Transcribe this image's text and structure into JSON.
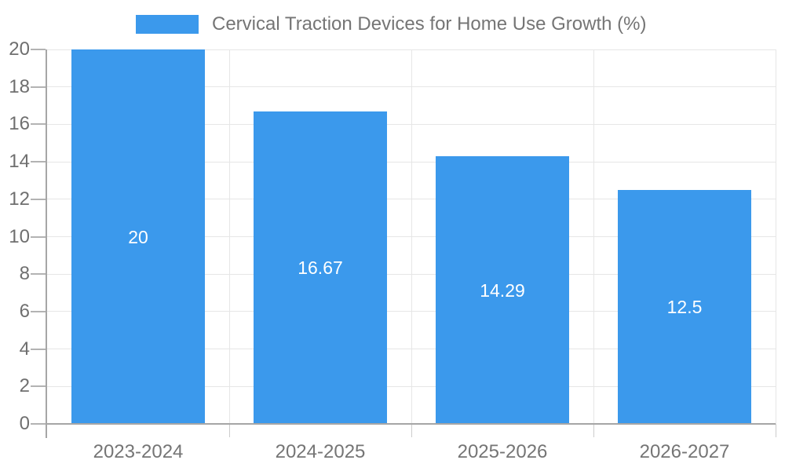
{
  "legend": {
    "label": "Cervical Traction Devices for Home Use Growth (%)"
  },
  "colors": {
    "bar": "#3b99ec",
    "legend_text": "#757575",
    "x_label_text": "#757575",
    "y_label_text": "#6f6f6f",
    "grid": "#e6e6e6",
    "axis": "#a6a6a6",
    "tick": "#b3b3b3",
    "x_tick": "#cccccc",
    "value_text": "#ffffff",
    "background": "#ffffff"
  },
  "chart_data": {
    "type": "bar",
    "title": "Cervical Traction Devices for Home Use Growth (%)",
    "categories": [
      "2023-2024",
      "2024-2025",
      "2025-2026",
      "2026-2027"
    ],
    "values": [
      20,
      16.67,
      14.29,
      12.5
    ],
    "value_labels": [
      "20",
      "16.67",
      "14.29",
      "12.5"
    ],
    "xlabel": "",
    "ylabel": "",
    "ylim": [
      0,
      20
    ],
    "yticks": [
      0,
      2,
      4,
      6,
      8,
      10,
      12,
      14,
      16,
      18,
      20
    ],
    "grid": true,
    "legend_position": "top-center",
    "bar_label_position": "center-of-bar"
  }
}
